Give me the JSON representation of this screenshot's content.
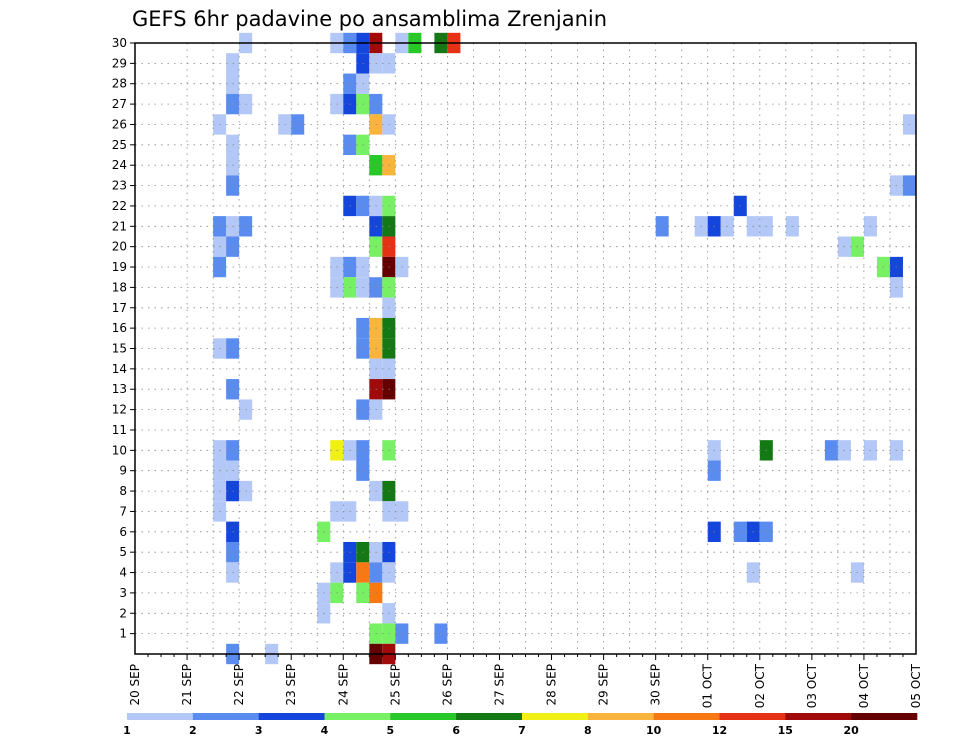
{
  "chart_data": {
    "type": "heatmap",
    "title": "GEFS 6hr padavine po ansamblima Zrenjanin",
    "xlabel": "",
    "ylabel": "",
    "x_tick_labels": [
      "20 SEP",
      "21 SEP",
      "22 SEP",
      "23 SEP",
      "24 SEP",
      "25 SEP",
      "26 SEP",
      "27 SEP",
      "28 SEP",
      "29 SEP",
      "30 SEP",
      "01 OCT",
      "02 OCT",
      "03 OCT",
      "04 OCT",
      "05 OCT"
    ],
    "x_unit": "6-hour step since 20 SEP 00z",
    "x_range": [
      0,
      60
    ],
    "y_tick_labels": [
      "1",
      "2",
      "3",
      "4",
      "5",
      "6",
      "7",
      "8",
      "9",
      "10",
      "11",
      "12",
      "13",
      "14",
      "15",
      "16",
      "17",
      "18",
      "19",
      "20",
      "21",
      "22",
      "23",
      "24",
      "25",
      "26",
      "27",
      "28",
      "29",
      "30"
    ],
    "y_range": [
      0,
      30
    ],
    "grid": true,
    "colorbar": {
      "position": "bottom",
      "levels": [
        "1",
        "2",
        "3",
        "4",
        "5",
        "6",
        "7",
        "8",
        "10",
        "12",
        "15",
        "20"
      ],
      "colors": [
        "#b4c8f8",
        "#5a8cf0",
        "#1446dc",
        "#78f064",
        "#28c828",
        "#147814",
        "#f0f014",
        "#f8b43c",
        "#f87814",
        "#e63214",
        "#a00a0a",
        "#640000"
      ]
    },
    "cells": [
      [
        30,
        8,
        0
      ],
      [
        30,
        15,
        0
      ],
      [
        30,
        16,
        1
      ],
      [
        30,
        17,
        2
      ],
      [
        30,
        18,
        10
      ],
      [
        30,
        20,
        0
      ],
      [
        30,
        21,
        4
      ],
      [
        30,
        23,
        5
      ],
      [
        30,
        24,
        9
      ],
      [
        29,
        7,
        0
      ],
      [
        29,
        17,
        2
      ],
      [
        29,
        18,
        0
      ],
      [
        29,
        19,
        0
      ],
      [
        28,
        7,
        0
      ],
      [
        28,
        16,
        1
      ],
      [
        28,
        17,
        0
      ],
      [
        27,
        7,
        1
      ],
      [
        27,
        8,
        0
      ],
      [
        27,
        15,
        0
      ],
      [
        27,
        16,
        2
      ],
      [
        27,
        17,
        3
      ],
      [
        27,
        18,
        1
      ],
      [
        26,
        6,
        0
      ],
      [
        26,
        11,
        0
      ],
      [
        26,
        12,
        1
      ],
      [
        26,
        18,
        7
      ],
      [
        26,
        19,
        0
      ],
      [
        26,
        59,
        0
      ],
      [
        25,
        7,
        0
      ],
      [
        25,
        16,
        1
      ],
      [
        25,
        17,
        3
      ],
      [
        24,
        7,
        0
      ],
      [
        24,
        18,
        4
      ],
      [
        24,
        19,
        7
      ],
      [
        23,
        7,
        1
      ],
      [
        23,
        58,
        0
      ],
      [
        23,
        59,
        1
      ],
      [
        22,
        16,
        2
      ],
      [
        22,
        17,
        1
      ],
      [
        22,
        18,
        0
      ],
      [
        22,
        19,
        3
      ],
      [
        22,
        46,
        2
      ],
      [
        21,
        6,
        1
      ],
      [
        21,
        7,
        0
      ],
      [
        21,
        8,
        1
      ],
      [
        21,
        18,
        2
      ],
      [
        21,
        19,
        5
      ],
      [
        21,
        40,
        1
      ],
      [
        21,
        43,
        0
      ],
      [
        21,
        44,
        2
      ],
      [
        21,
        45,
        0
      ],
      [
        21,
        47,
        0
      ],
      [
        21,
        48,
        0
      ],
      [
        21,
        50,
        0
      ],
      [
        21,
        56,
        0
      ],
      [
        20,
        6,
        0
      ],
      [
        20,
        7,
        1
      ],
      [
        20,
        18,
        3
      ],
      [
        20,
        19,
        9
      ],
      [
        20,
        54,
        0
      ],
      [
        20,
        55,
        3
      ],
      [
        19,
        6,
        1
      ],
      [
        19,
        15,
        0
      ],
      [
        19,
        16,
        1
      ],
      [
        19,
        17,
        0
      ],
      [
        19,
        19,
        11
      ],
      [
        19,
        20,
        0
      ],
      [
        19,
        57,
        3
      ],
      [
        19,
        58,
        2
      ],
      [
        18,
        15,
        0
      ],
      [
        18,
        16,
        3
      ],
      [
        18,
        17,
        0
      ],
      [
        18,
        18,
        1
      ],
      [
        18,
        19,
        3
      ],
      [
        18,
        58,
        0
      ],
      [
        17,
        19,
        0
      ],
      [
        16,
        17,
        1
      ],
      [
        16,
        18,
        7
      ],
      [
        16,
        19,
        5
      ],
      [
        15,
        6,
        0
      ],
      [
        15,
        7,
        1
      ],
      [
        15,
        17,
        1
      ],
      [
        15,
        18,
        7
      ],
      [
        15,
        19,
        5
      ],
      [
        14,
        18,
        0
      ],
      [
        14,
        19,
        0
      ],
      [
        13,
        7,
        1
      ],
      [
        13,
        18,
        10
      ],
      [
        13,
        19,
        11
      ],
      [
        12,
        8,
        0
      ],
      [
        12,
        17,
        1
      ],
      [
        12,
        18,
        0
      ],
      [
        10,
        6,
        0
      ],
      [
        10,
        7,
        1
      ],
      [
        10,
        15,
        6
      ],
      [
        10,
        16,
        0
      ],
      [
        10,
        17,
        1
      ],
      [
        10,
        19,
        3
      ],
      [
        10,
        44,
        0
      ],
      [
        10,
        48,
        5
      ],
      [
        10,
        53,
        1
      ],
      [
        10,
        54,
        0
      ],
      [
        10,
        56,
        0
      ],
      [
        10,
        58,
        0
      ],
      [
        9,
        6,
        0
      ],
      [
        9,
        7,
        0
      ],
      [
        9,
        17,
        1
      ],
      [
        9,
        44,
        1
      ],
      [
        8,
        6,
        0
      ],
      [
        8,
        7,
        2
      ],
      [
        8,
        8,
        0
      ],
      [
        8,
        18,
        0
      ],
      [
        8,
        19,
        5
      ],
      [
        7,
        6,
        0
      ],
      [
        7,
        15,
        0
      ],
      [
        7,
        16,
        0
      ],
      [
        7,
        19,
        0
      ],
      [
        7,
        20,
        0
      ],
      [
        6,
        7,
        2
      ],
      [
        6,
        14,
        3
      ],
      [
        6,
        44,
        2
      ],
      [
        6,
        46,
        1
      ],
      [
        6,
        47,
        2
      ],
      [
        6,
        48,
        1
      ],
      [
        5,
        7,
        1
      ],
      [
        5,
        16,
        2
      ],
      [
        5,
        17,
        5
      ],
      [
        5,
        18,
        0
      ],
      [
        5,
        19,
        2
      ],
      [
        4,
        7,
        0
      ],
      [
        4,
        15,
        0
      ],
      [
        4,
        16,
        2
      ],
      [
        4,
        17,
        8
      ],
      [
        4,
        18,
        1
      ],
      [
        4,
        19,
        0
      ],
      [
        4,
        47,
        0
      ],
      [
        4,
        55,
        0
      ],
      [
        3,
        14,
        0
      ],
      [
        3,
        15,
        3
      ],
      [
        3,
        17,
        3
      ],
      [
        3,
        18,
        8
      ],
      [
        2,
        14,
        0
      ],
      [
        2,
        19,
        0
      ],
      [
        1,
        18,
        3
      ],
      [
        1,
        19,
        3
      ],
      [
        1,
        20,
        1
      ],
      [
        1,
        23,
        1
      ],
      [
        0,
        7,
        1
      ],
      [
        0,
        10,
        0
      ],
      [
        0,
        18,
        11
      ],
      [
        0,
        19,
        10
      ]
    ]
  }
}
